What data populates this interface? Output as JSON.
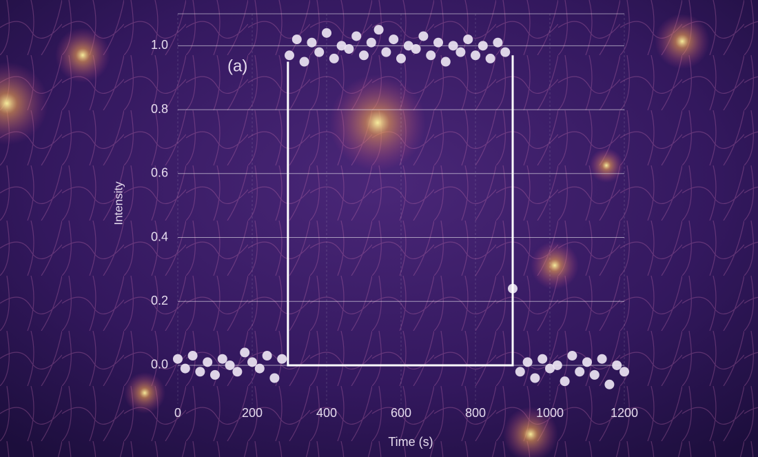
{
  "chart_data": {
    "type": "scatter",
    "annotation": "(a)",
    "xlabel": "Time (s)",
    "ylabel": "Intensity",
    "xlim": [
      0,
      1200
    ],
    "ylim": [
      -0.12,
      1.1
    ],
    "xticks": [
      0,
      200,
      400,
      600,
      800,
      1000,
      1200
    ],
    "yticks": [
      {
        "value": 0,
        "label": "0.0"
      },
      0.2,
      0.4,
      0.6,
      0.8,
      {
        "value": 1,
        "label": "1.0"
      }
    ],
    "grid": true,
    "series": [
      {
        "type": "scatter",
        "color": "#ece4f2",
        "x": [
          0,
          20,
          40,
          60,
          80,
          100,
          120,
          140,
          160,
          180,
          200,
          220,
          240,
          260,
          280,
          300,
          320,
          340,
          360,
          380,
          400,
          420,
          440,
          460,
          480,
          500,
          520,
          540,
          560,
          580,
          600,
          620,
          640,
          660,
          680,
          700,
          720,
          740,
          760,
          780,
          800,
          820,
          840,
          860,
          880,
          900,
          920,
          940,
          960,
          980,
          1000,
          1020,
          1040,
          1060,
          1080,
          1100,
          1120,
          1140,
          1160,
          1180,
          1200
        ],
        "values": [
          0.02,
          -0.01,
          0.03,
          -0.02,
          0.01,
          -0.03,
          0.02,
          0.0,
          -0.02,
          0.04,
          0.01,
          -0.01,
          0.03,
          -0.04,
          0.02,
          0.97,
          1.02,
          0.95,
          1.01,
          0.98,
          1.04,
          0.96,
          1.0,
          0.99,
          1.03,
          0.97,
          1.01,
          1.05,
          0.98,
          1.02,
          0.96,
          1.0,
          0.99,
          1.03,
          0.97,
          1.01,
          0.95,
          1.0,
          0.98,
          1.02,
          0.97,
          1.0,
          0.96,
          1.01,
          0.98,
          0.24,
          -0.02,
          0.01,
          -0.04,
          0.02,
          -0.01,
          0.0,
          -0.05,
          0.03,
          -0.02,
          0.01,
          -0.03,
          0.02,
          -0.06,
          0.0,
          -0.02
        ]
      },
      {
        "type": "line",
        "color": "#ffffff",
        "x": [
          296,
          296,
          900,
          900
        ],
        "values": [
          0.95,
          0,
          0,
          0.97
        ]
      }
    ]
  }
}
